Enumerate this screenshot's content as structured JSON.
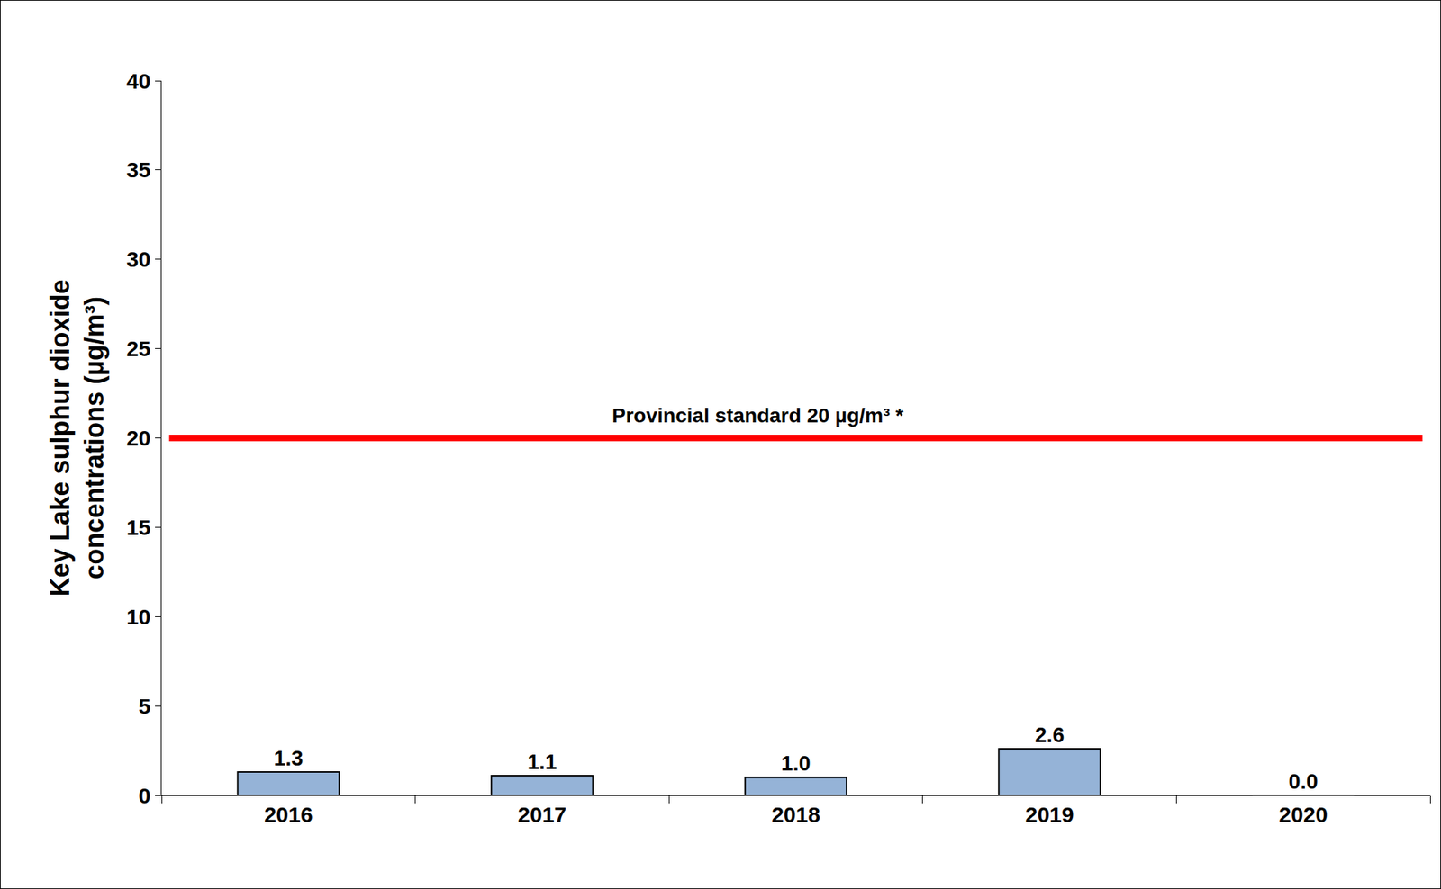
{
  "chart_data": {
    "type": "bar",
    "categories": [
      "2016",
      "2017",
      "2018",
      "2019",
      "2020"
    ],
    "values": [
      1.3,
      1.1,
      1.0,
      2.6,
      0.0
    ],
    "value_labels": [
      "1.3",
      "1.1",
      "1.0",
      "2.6",
      "0.0"
    ],
    "color": "#95b3d7",
    "ylabel": [
      "Key Lake sulphur dioxide",
      "concentrations (µg/m³)"
    ],
    "ylim": [
      0,
      40
    ],
    "yticks": [
      0,
      5,
      10,
      15,
      20,
      25,
      30,
      35,
      40
    ],
    "grid": false,
    "data_labels": true,
    "reference_line": {
      "value": 20,
      "label": "Provincial standard 20 µg/m³ *",
      "color": "#ff0000"
    }
  }
}
